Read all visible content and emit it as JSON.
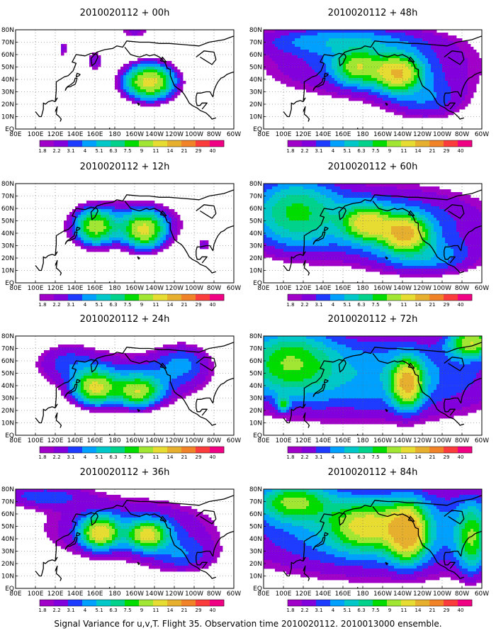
{
  "figure": {
    "caption": "Signal Variance for u,v,T. Flight 35. Observation time 2010020112. 2010013000 ensemble."
  },
  "axes": {
    "lon_labels": [
      "80E",
      "100E",
      "120E",
      "140E",
      "160E",
      "180",
      "160W",
      "140W",
      "120W",
      "100W",
      "80W",
      "60W"
    ],
    "lat_labels": [
      "EQ",
      "10N",
      "20N",
      "30N",
      "40N",
      "50N",
      "60N",
      "70N",
      "80N"
    ],
    "lon_range_deg_east": [
      80,
      300
    ],
    "lat_range_deg_north": [
      0,
      80
    ],
    "grid": "dotted"
  },
  "colorbar": {
    "levels": [
      "1.8",
      "2.2",
      "3.1",
      "4",
      "5.1",
      "6.3",
      "7.5",
      "9",
      "11",
      "14",
      "21",
      "29",
      "40"
    ],
    "colors": [
      "#a000c8",
      "#8200dc",
      "#1e3cff",
      "#00a0ff",
      "#00c8c8",
      "#00d28c",
      "#00dc00",
      "#a0e632",
      "#e6dc32",
      "#e6af2d",
      "#f08228",
      "#fa3c3c",
      "#f00082"
    ]
  },
  "panels": [
    {
      "title": "2010020112 + 00h",
      "lead_h": 0
    },
    {
      "title": "2010020112 + 12h",
      "lead_h": 12
    },
    {
      "title": "2010020112 + 24h",
      "lead_h": 24
    },
    {
      "title": "2010020112 + 36h",
      "lead_h": 36
    },
    {
      "title": "2010020112 + 48h",
      "lead_h": 48
    },
    {
      "title": "2010020112 + 60h",
      "lead_h": 60
    },
    {
      "title": "2010020112 + 72h",
      "lead_h": 72
    },
    {
      "title": "2010020112 + 84h",
      "lead_h": 84
    }
  ],
  "chart_data": {
    "type": "heatmap",
    "variable": "signal variance (u,v,T)",
    "fields": [
      {
        "lead_h": 0,
        "blobs": [
          {
            "lon": 215,
            "lat": 38,
            "lon_r": 18,
            "lat_r": 10,
            "peak": 12
          },
          {
            "lon": 160,
            "lat": 55,
            "lon_r": 6,
            "lat_r": 6,
            "peak": 3
          },
          {
            "lon": 128,
            "lat": 65,
            "lon_r": 4,
            "lat_r": 6,
            "peak": 2.5
          },
          {
            "lon": 200,
            "lat": 78,
            "lon_r": 14,
            "lat_r": 3,
            "peak": 2.5
          }
        ]
      },
      {
        "lead_h": 12,
        "blobs": [
          {
            "lon": 160,
            "lat": 45,
            "lon_r": 14,
            "lat_r": 10,
            "peak": 8
          },
          {
            "lon": 210,
            "lat": 42,
            "lon_r": 14,
            "lat_r": 10,
            "peak": 9
          },
          {
            "lon": 195,
            "lat": 48,
            "lon_r": 45,
            "lat_r": 14,
            "peak": 3.2
          },
          {
            "lon": 270,
            "lat": 30,
            "lon_r": 5,
            "lat_r": 4,
            "peak": 2.4
          }
        ]
      },
      {
        "lead_h": 24,
        "blobs": [
          {
            "lon": 160,
            "lat": 38,
            "lon_r": 14,
            "lat_r": 9,
            "peak": 9
          },
          {
            "lon": 203,
            "lat": 35,
            "lon_r": 15,
            "lat_r": 8,
            "peak": 8
          },
          {
            "lon": 200,
            "lat": 45,
            "lon_r": 55,
            "lat_r": 17,
            "peak": 3.5
          },
          {
            "lon": 130,
            "lat": 60,
            "lon_r": 25,
            "lat_r": 12,
            "peak": 2.5
          },
          {
            "lon": 250,
            "lat": 60,
            "lon_r": 20,
            "lat_r": 12,
            "peak": 2.6
          }
        ]
      },
      {
        "lead_h": 36,
        "blobs": [
          {
            "lon": 165,
            "lat": 45,
            "lon_r": 12,
            "lat_r": 8,
            "peak": 10
          },
          {
            "lon": 213,
            "lat": 43,
            "lon_r": 13,
            "lat_r": 7,
            "peak": 9
          },
          {
            "lon": 195,
            "lat": 48,
            "lon_r": 70,
            "lat_r": 20,
            "peak": 3.8
          },
          {
            "lon": 105,
            "lat": 75,
            "lon_r": 35,
            "lat_r": 7,
            "peak": 3
          },
          {
            "lon": 250,
            "lat": 25,
            "lon_r": 25,
            "lat_r": 10,
            "peak": 2.5
          }
        ]
      },
      {
        "lead_h": 48,
        "blobs": [
          {
            "lon": 215,
            "lat": 45,
            "lon_r": 15,
            "lat_r": 9,
            "peak": 11
          },
          {
            "lon": 175,
            "lat": 50,
            "lon_r": 15,
            "lat_r": 9,
            "peak": 7
          },
          {
            "lon": 190,
            "lat": 52,
            "lon_r": 90,
            "lat_r": 22,
            "peak": 3.8
          },
          {
            "lon": 150,
            "lat": 72,
            "lon_r": 60,
            "lat_r": 8,
            "peak": 2.8
          },
          {
            "lon": 245,
            "lat": 22,
            "lon_r": 30,
            "lat_r": 12,
            "peak": 2.7
          }
        ]
      },
      {
        "lead_h": 60,
        "blobs": [
          {
            "lon": 222,
            "lat": 40,
            "lon_r": 15,
            "lat_r": 9,
            "peak": 12
          },
          {
            "lon": 185,
            "lat": 48,
            "lon_r": 15,
            "lat_r": 9,
            "peak": 9
          },
          {
            "lon": 190,
            "lat": 48,
            "lon_r": 100,
            "lat_r": 25,
            "peak": 4.3
          },
          {
            "lon": 110,
            "lat": 60,
            "lon_r": 30,
            "lat_r": 20,
            "peak": 5
          },
          {
            "lon": 245,
            "lat": 20,
            "lon_r": 35,
            "lat_r": 10,
            "peak": 3
          }
        ]
      },
      {
        "lead_h": 72,
        "blobs": [
          {
            "lon": 225,
            "lat": 42,
            "lon_r": 10,
            "lat_r": 12,
            "peak": 12
          },
          {
            "lon": 190,
            "lat": 48,
            "lon_r": 110,
            "lat_r": 28,
            "peak": 4.8
          },
          {
            "lon": 105,
            "lat": 60,
            "lon_r": 30,
            "lat_r": 18,
            "peak": 6
          },
          {
            "lon": 290,
            "lat": 75,
            "lon_r": 15,
            "lat_r": 8,
            "peak": 9
          },
          {
            "lon": 100,
            "lat": 25,
            "lon_r": 4,
            "lat_r": 4,
            "peak": 5
          }
        ]
      },
      {
        "lead_h": 84,
        "blobs": [
          {
            "lon": 225,
            "lat": 45,
            "lon_r": 12,
            "lat_r": 14,
            "peak": 13
          },
          {
            "lon": 185,
            "lat": 50,
            "lon_r": 25,
            "lat_r": 12,
            "peak": 8
          },
          {
            "lon": 195,
            "lat": 48,
            "lon_r": 115,
            "lat_r": 30,
            "peak": 5
          },
          {
            "lon": 110,
            "lat": 70,
            "lon_r": 25,
            "lat_r": 10,
            "peak": 7
          },
          {
            "lon": 290,
            "lat": 40,
            "lon_r": 10,
            "lat_r": 18,
            "peak": 6
          }
        ]
      }
    ]
  }
}
